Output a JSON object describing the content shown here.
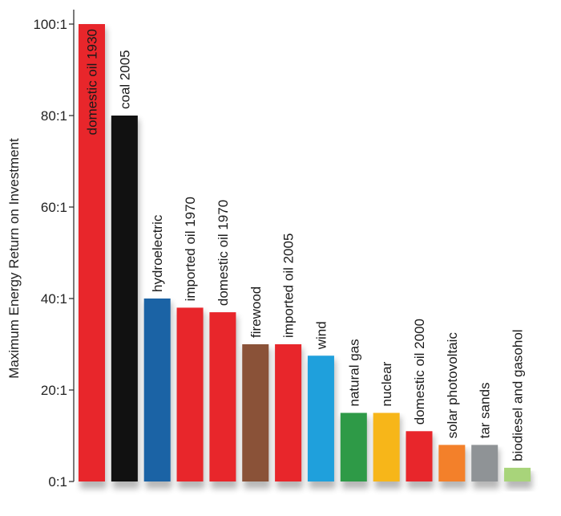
{
  "chart_data": {
    "type": "bar",
    "ylabel": "Maximum Energy Return on Investment",
    "ylim": [
      0,
      100
    ],
    "yticks": [
      {
        "value": 0,
        "label": "0:1"
      },
      {
        "value": 20,
        "label": "20:1"
      },
      {
        "value": 40,
        "label": "40:1"
      },
      {
        "value": 60,
        "label": "60:1"
      },
      {
        "value": 80,
        "label": "80:1"
      },
      {
        "value": 100,
        "label": "100:1"
      }
    ],
    "grid": false,
    "bars": [
      {
        "label": "domestic oil 1930",
        "value": 100,
        "color": "#e8262b",
        "label_inside": true
      },
      {
        "label": "coal 2005",
        "value": 80,
        "color": "#111111",
        "label_inside": false
      },
      {
        "label": "hydroelectric",
        "value": 40,
        "color": "#1b63a5",
        "label_inside": false
      },
      {
        "label": "imported oil 1970",
        "value": 38,
        "color": "#e8262b",
        "label_inside": false
      },
      {
        "label": "domestic oil 1970",
        "value": 37,
        "color": "#e8262b",
        "label_inside": false
      },
      {
        "label": "firewood",
        "value": 30,
        "color": "#8a5238",
        "label_inside": false
      },
      {
        "label": "imported oil 2005",
        "value": 30,
        "color": "#e8262b",
        "label_inside": false
      },
      {
        "label": "wind",
        "value": 27.5,
        "color": "#1fa0dc",
        "label_inside": false
      },
      {
        "label": "natural gas",
        "value": 15,
        "color": "#2e9a47",
        "label_inside": false
      },
      {
        "label": "nuclear",
        "value": 15,
        "color": "#f7b619",
        "label_inside": false
      },
      {
        "label": "domestic oil 2000",
        "value": 11,
        "color": "#e8262b",
        "label_inside": false
      },
      {
        "label": "solar photovoltaic",
        "value": 8,
        "color": "#f3802a",
        "label_inside": false
      },
      {
        "label": "tar sands",
        "value": 8,
        "color": "#8f9396",
        "label_inside": false
      },
      {
        "label": "biodiesel and gasohol",
        "value": 3,
        "color": "#a8d47a",
        "label_inside": false
      }
    ]
  }
}
